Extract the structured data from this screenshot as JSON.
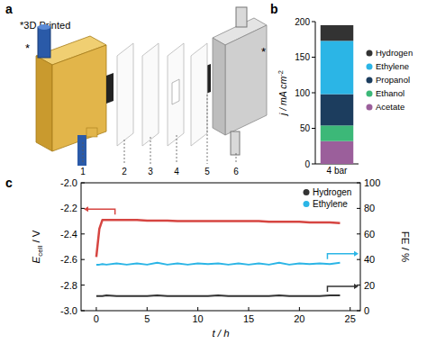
{
  "panel_labels": [
    "a",
    "b",
    "c"
  ],
  "diagram": {
    "note_label": "*3D Printed",
    "marker": "*",
    "parts": [
      "1",
      "2",
      "3",
      "4",
      "5",
      "6"
    ]
  },
  "chart_data": [
    {
      "type": "bar",
      "stacked": true,
      "legend": "right",
      "y_label": [
        "j / mA cm",
        "-2"
      ],
      "categories": [
        "4 bar"
      ],
      "ylim": [
        0,
        200
      ],
      "yticks": [
        0,
        50,
        100,
        150,
        200
      ],
      "series": [
        {
          "name": "Acetate",
          "color": "#9b5f9b",
          "values": [
            32
          ]
        },
        {
          "name": "Ethanol",
          "color": "#3cb878",
          "values": [
            22
          ]
        },
        {
          "name": "Propanol",
          "color": "#1c3d5e",
          "values": [
            44
          ]
        },
        {
          "name": "Ethylene",
          "color": "#2bb5e6",
          "values": [
            75
          ]
        },
        {
          "name": "Hydrogen",
          "color": "#333333",
          "values": [
            22
          ]
        }
      ]
    },
    {
      "type": "line",
      "legend": "upper right",
      "x_label": "t / h",
      "y_label": [
        "E",
        "cell",
        " / V"
      ],
      "y2_label": "FE / %",
      "x": [
        0,
        0.3,
        0.6,
        1,
        2,
        3,
        4,
        5,
        6,
        7,
        8,
        9,
        10,
        11,
        12,
        13,
        14,
        15,
        16,
        17,
        18,
        19,
        20,
        21,
        22,
        23,
        24
      ],
      "xlim": [
        -1.5,
        26
      ],
      "xticks": [
        0,
        5,
        10,
        15,
        20,
        25
      ],
      "ylim": [
        -3,
        -2
      ],
      "yticks": [
        {
          "value": -2,
          "label": "-2.0"
        },
        {
          "value": -2.2,
          "label": "-2.2"
        },
        {
          "value": -2.4,
          "label": "-2.4"
        },
        {
          "value": -2.6,
          "label": "-2.6"
        },
        {
          "value": -2.8,
          "label": "-2.8"
        },
        {
          "value": -3,
          "label": "-3.0"
        }
      ],
      "y2lim": [
        0,
        100
      ],
      "y2ticks": [
        0,
        20,
        40,
        60,
        80,
        100
      ],
      "series": [
        {
          "color": "#d64541",
          "values": [
            -2.58,
            -2.36,
            -2.29,
            -2.29,
            -2.29,
            -2.29,
            -2.29,
            -2.295,
            -2.295,
            -2.295,
            -2.3,
            -2.3,
            -2.3,
            -2.3,
            -2.3,
            -2.3,
            -2.3,
            -2.3,
            -2.3,
            -2.305,
            -2.305,
            -2.305,
            -2.305,
            -2.31,
            -2.31,
            -2.31,
            -2.315
          ]
        },
        {
          "name": "Hydrogen",
          "color": "#333333",
          "axis": "y2",
          "values": [
            11.5,
            11.5,
            11.5,
            12,
            11.5,
            11.5,
            11.5,
            11.5,
            12,
            11.5,
            11.5,
            11.5,
            11.5,
            11.5,
            12,
            11.5,
            11.5,
            11.5,
            11.5,
            11.5,
            12,
            11.5,
            11.5,
            11.5,
            11.5,
            12,
            12
          ]
        },
        {
          "name": "Ethylene",
          "color": "#2bb5e6",
          "axis": "y2",
          "values": [
            36,
            36,
            36.5,
            36,
            37,
            36,
            37,
            36,
            37.5,
            36,
            37,
            36,
            37,
            36.5,
            37,
            36,
            37,
            36,
            37,
            36,
            37.5,
            36,
            37,
            36.5,
            37,
            36.5,
            37.5
          ]
        }
      ]
    }
  ]
}
